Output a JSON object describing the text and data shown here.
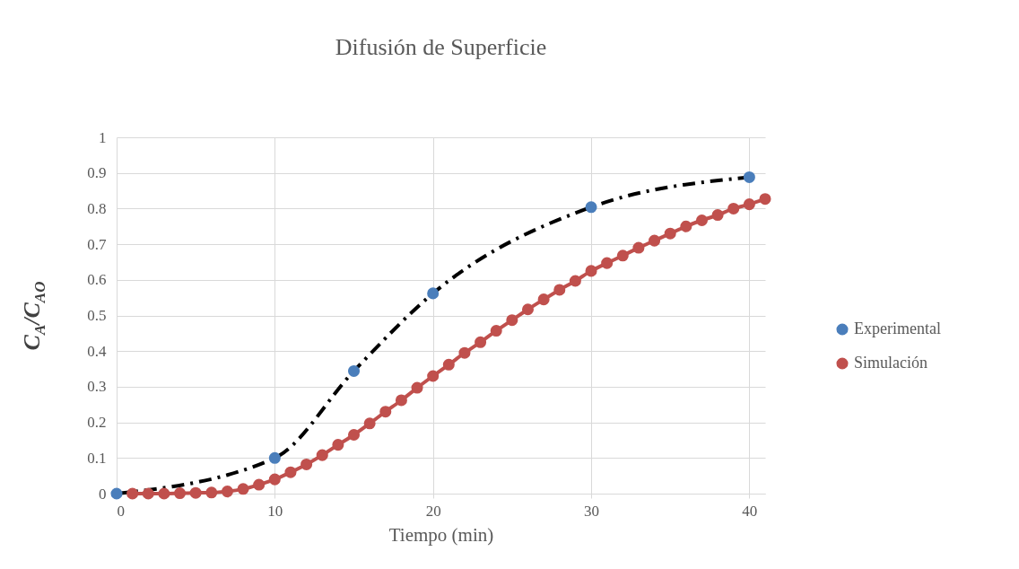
{
  "chart_data": {
    "type": "line",
    "title": "Difusión de Superficie",
    "xlabel": "Tiempo (min)",
    "ylabel": "C$_{A}$/C$_{AO}$",
    "xlim": [
      0,
      41
    ],
    "xticks": [
      0,
      10,
      20,
      30,
      40
    ],
    "ylim": [
      0,
      1
    ],
    "yticks": [
      0,
      0.1,
      0.2,
      0.3,
      0.4,
      0.5,
      0.6,
      0.7,
      0.8,
      0.9,
      1
    ],
    "grid": true,
    "legend": "right",
    "marker": "circle",
    "series": [
      {
        "name": "Experimental",
        "color": "#4a7ebb",
        "line_style": "dashed",
        "x": [
          0,
          10,
          15,
          20,
          30,
          40
        ],
        "values": [
          0,
          0.1,
          0.344,
          0.562,
          0.804,
          0.888
        ]
      },
      {
        "name": "Simulación",
        "color": "#c0504d",
        "line_style": "solid",
        "x": [
          1,
          2,
          3,
          4,
          5,
          6,
          7,
          8,
          9,
          10,
          11,
          12,
          13,
          14,
          15,
          16,
          17,
          18,
          19,
          20,
          21,
          22,
          23,
          24,
          25,
          26,
          27,
          28,
          29,
          30,
          31,
          32,
          33,
          34,
          35,
          36,
          37,
          38,
          39,
          40,
          41
        ],
        "values": [
          0,
          0,
          0,
          0.001,
          0.002,
          0.003,
          0.006,
          0.013,
          0.025,
          0.04,
          0.06,
          0.082,
          0.108,
          0.137,
          0.165,
          0.197,
          0.23,
          0.262,
          0.297,
          0.33,
          0.362,
          0.395,
          0.425,
          0.457,
          0.487,
          0.517,
          0.545,
          0.572,
          0.597,
          0.625,
          0.647,
          0.668,
          0.69,
          0.71,
          0.73,
          0.75,
          0.767,
          0.782,
          0.8,
          0.812,
          0.827
        ]
      }
    ]
  }
}
